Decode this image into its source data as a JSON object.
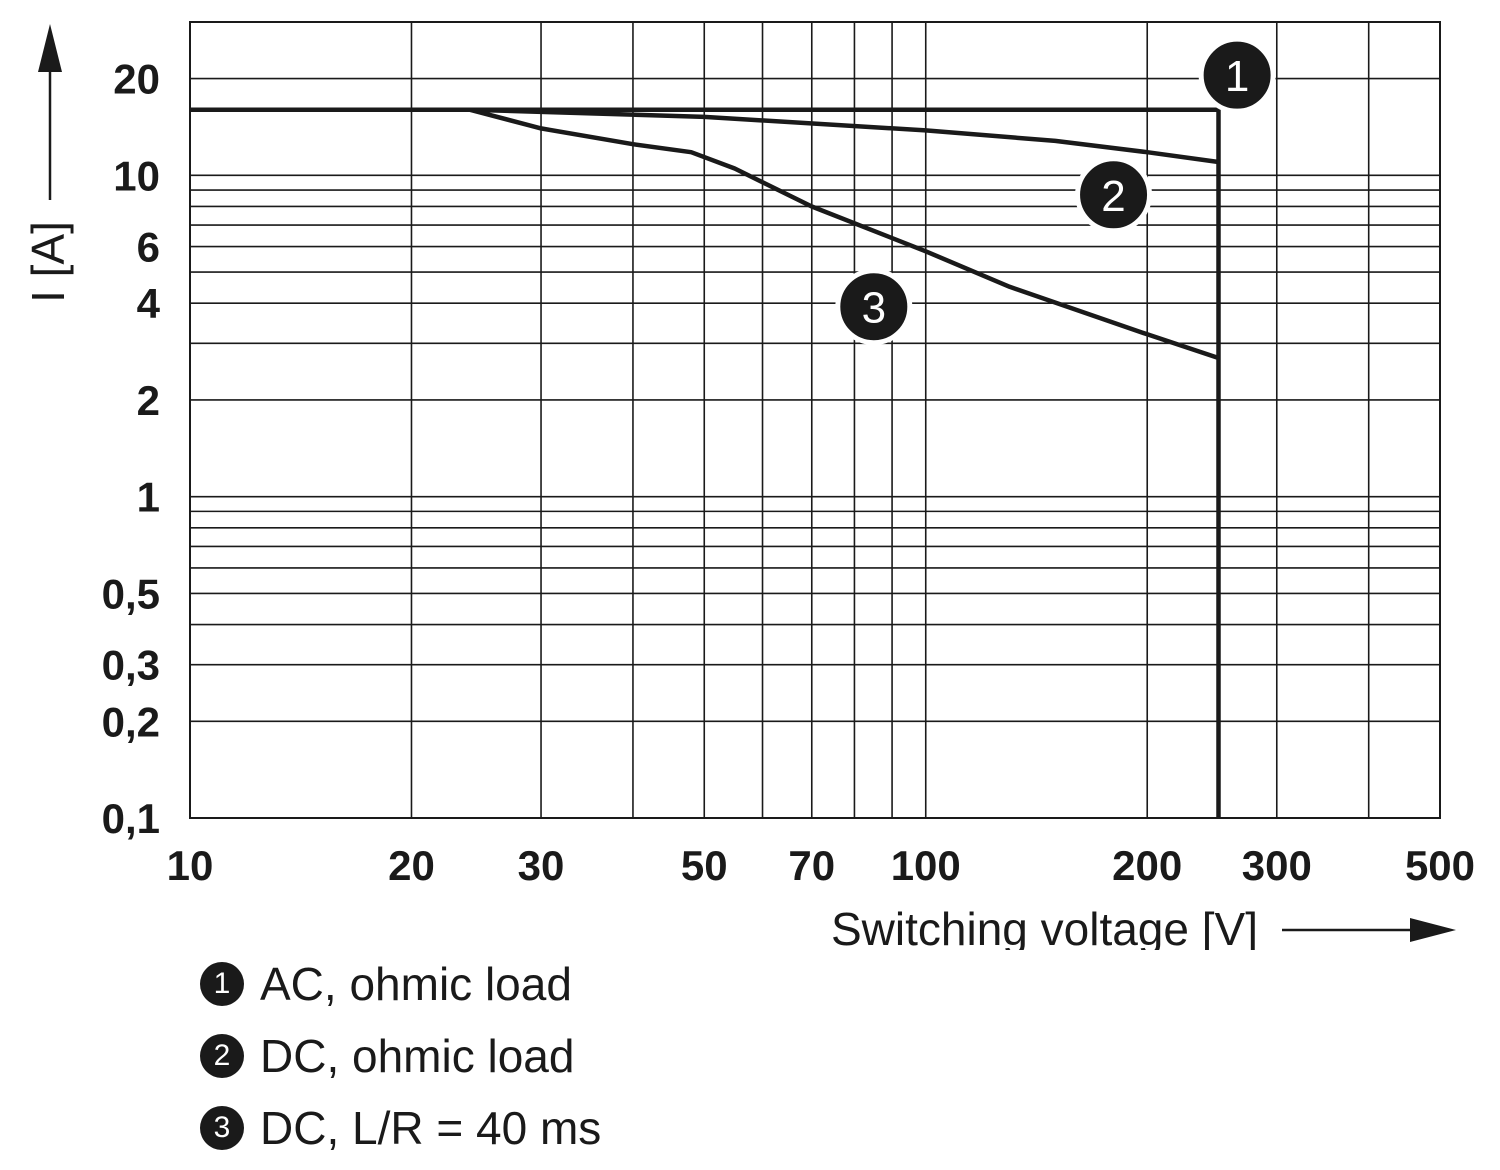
{
  "chart_data": {
    "type": "line",
    "xlabel": "Switching voltage [V]",
    "ylabel": "I [A]",
    "xscale": "log",
    "yscale": "log",
    "xlim": [
      10,
      500
    ],
    "ylim": [
      0.1,
      30
    ],
    "x_ticks": [
      10,
      20,
      30,
      50,
      70,
      100,
      200,
      300,
      500
    ],
    "x_tick_labels": [
      "10",
      "20",
      "30",
      "50",
      "70",
      "100",
      "200",
      "300",
      "500"
    ],
    "y_ticks": [
      0.1,
      0.2,
      0.3,
      0.5,
      1,
      2,
      4,
      6,
      10,
      20
    ],
    "y_tick_labels": [
      "0,1",
      "0,2",
      "0,3",
      "0,5",
      "1",
      "2",
      "4",
      "6",
      "10",
      "20"
    ],
    "x_gridlines": [
      20,
      30,
      40,
      50,
      60,
      70,
      80,
      90,
      100,
      200,
      300,
      400
    ],
    "y_gridlines": [
      0.2,
      0.3,
      0.4,
      0.5,
      0.6,
      0.7,
      0.8,
      0.9,
      1,
      2,
      3,
      4,
      5,
      6,
      7,
      8,
      9,
      10,
      20
    ],
    "grid": true,
    "series": [
      {
        "marker": "1",
        "x": [
          10,
          250,
          250
        ],
        "y": [
          16,
          16,
          0.1
        ]
      },
      {
        "marker": "2",
        "x": [
          10,
          24,
          50,
          100,
          150,
          200,
          250
        ],
        "y": [
          16,
          16,
          15.2,
          13.8,
          12.8,
          11.8,
          11
        ]
      },
      {
        "marker": "3",
        "x": [
          10,
          24,
          30,
          40,
          48,
          55,
          70,
          100,
          130,
          200,
          250
        ],
        "y": [
          16,
          16,
          14,
          12.5,
          11.8,
          10.5,
          8,
          5.8,
          4.5,
          3.2,
          2.7
        ]
      }
    ],
    "markers": [
      {
        "label": "1",
        "x": 265,
        "y": 20.5
      },
      {
        "label": "2",
        "x": 180,
        "y": 8.7
      },
      {
        "label": "3",
        "x": 85,
        "y": 3.9
      }
    ],
    "legend": [
      {
        "marker": "1",
        "text": "AC, ohmic load"
      },
      {
        "marker": "2",
        "text": "DC, ohmic load"
      },
      {
        "marker": "3",
        "text": "DC, L/R = 40 ms"
      }
    ],
    "legend_placement": "bottom-left"
  }
}
